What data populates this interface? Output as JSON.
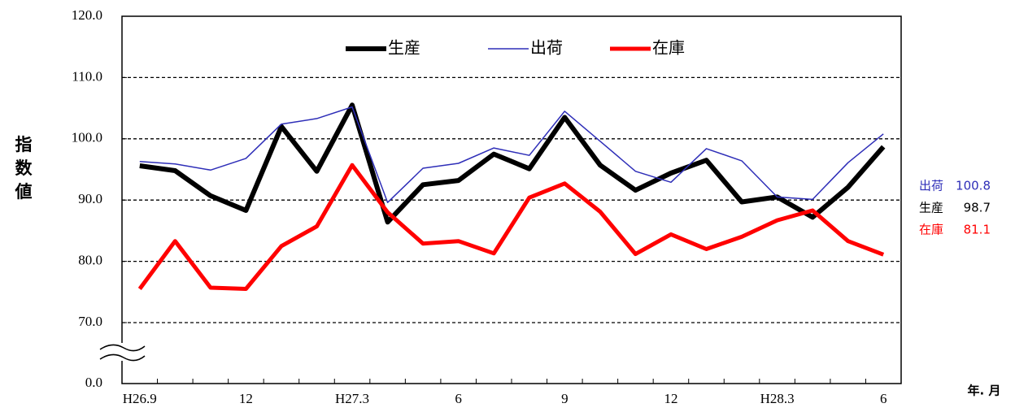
{
  "chart_data": {
    "type": "line",
    "y_label": "指数値",
    "x_label": "年. 月",
    "categories": [
      "H26.9",
      null,
      null,
      "12",
      null,
      null,
      "H27.3",
      null,
      null,
      "6",
      null,
      null,
      "9",
      null,
      null,
      "12",
      null,
      null,
      "H28.3",
      null,
      null,
      "6"
    ],
    "series": [
      {
        "name": "生産",
        "color": "#000000",
        "width": 6,
        "values": [
          95.6,
          94.8,
          90.7,
          88.3,
          102.0,
          94.7,
          105.5,
          86.4,
          92.5,
          93.2,
          97.5,
          95.1,
          103.5,
          95.7,
          91.6,
          94.4,
          96.5,
          89.7,
          90.5,
          87.2,
          92.1,
          98.7
        ]
      },
      {
        "name": "出荷",
        "color": "#2e2eb8",
        "width": 1.5,
        "values": [
          96.3,
          95.9,
          94.9,
          96.8,
          102.4,
          103.3,
          105.2,
          89.6,
          95.2,
          96.0,
          98.5,
          97.3,
          104.5,
          99.6,
          94.7,
          92.9,
          98.4,
          96.4,
          90.5,
          90.1,
          96.1,
          100.8
        ]
      },
      {
        "name": "在庫",
        "color": "#ff0000",
        "width": 5,
        "values": [
          75.5,
          83.3,
          75.7,
          75.5,
          82.5,
          85.7,
          95.7,
          88.0,
          82.9,
          83.3,
          81.3,
          90.4,
          92.7,
          88.1,
          81.2,
          84.4,
          82.0,
          84.0,
          86.7,
          88.3,
          83.3,
          81.1
        ]
      }
    ],
    "ylim": [
      0,
      120
    ],
    "yticks": [
      {
        "value": 0,
        "label": "0.0"
      },
      {
        "value": 70,
        "label": "70.0"
      },
      {
        "value": 80,
        "label": "80.0"
      },
      {
        "value": 90,
        "label": "90.0"
      },
      {
        "value": 100,
        "label": "100.0"
      },
      {
        "value": 110,
        "label": "110.0"
      },
      {
        "value": 120,
        "label": "120.0"
      }
    ],
    "axis_break": true,
    "grid": true,
    "legend": "top"
  }
}
